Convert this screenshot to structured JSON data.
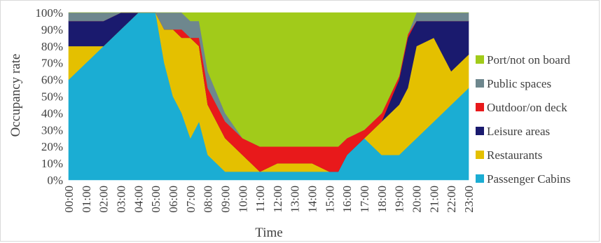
{
  "chart_data": {
    "type": "area",
    "stacked": true,
    "xlabel": "Time",
    "ylabel": "Occupancy rate",
    "ylim": [
      0,
      100
    ],
    "y_ticks": [
      "0%",
      "10%",
      "20%",
      "30%",
      "40%",
      "50%",
      "60%",
      "70%",
      "80%",
      "90%",
      "100%"
    ],
    "x": [
      "00:00",
      "01:00",
      "02:00",
      "03:00",
      "04:00",
      "05:00",
      "05:30",
      "06:00",
      "06:30",
      "07:00",
      "07:30",
      "08:00",
      "09:00",
      "10:00",
      "11:00",
      "12:00",
      "13:00",
      "14:00",
      "15:00",
      "15:30",
      "16:00",
      "17:00",
      "18:00",
      "19:00",
      "19:30",
      "20:00",
      "21:00",
      "22:00",
      "23:00"
    ],
    "x_tick_labels": [
      "00:00",
      "01:00",
      "02:00",
      "03:00",
      "04:00",
      "05:00",
      "06:00",
      "07:00",
      "08:00",
      "09:00",
      "10:00",
      "11:00",
      "12:00",
      "13:00",
      "14:00",
      "15:00",
      "16:00",
      "17:00",
      "18:00",
      "19:00",
      "20:00",
      "21:00",
      "22:00",
      "23:00"
    ],
    "legend_position": "right",
    "series": [
      {
        "name": "Passenger Cabins",
        "color": "#1BADD3",
        "values": [
          60,
          70,
          80,
          90,
          100,
          100,
          70,
          50,
          40,
          25,
          35,
          15,
          5,
          5,
          5,
          5,
          5,
          5,
          5,
          5,
          15,
          25,
          15,
          15,
          20,
          25,
          35,
          45,
          55
        ]
      },
      {
        "name": "Restaurants",
        "color": "#E4C000",
        "values": [
          20,
          10,
          0,
          0,
          0,
          0,
          20,
          40,
          45,
          60,
          45,
          30,
          20,
          10,
          0,
          5,
          5,
          5,
          0,
          0,
          0,
          0,
          20,
          30,
          35,
          55,
          50,
          20,
          20
        ]
      },
      {
        "name": "Leisure areas",
        "color": "#1A1A6E",
        "values": [
          15,
          15,
          15,
          10,
          0,
          0,
          0,
          0,
          0,
          0,
          0,
          0,
          0,
          0,
          0,
          0,
          0,
          0,
          0,
          0,
          0,
          0,
          0,
          15,
          30,
          15,
          10,
          30,
          20
        ]
      },
      {
        "name": "Outdoor/on deck",
        "color": "#E8191B",
        "values": [
          0,
          0,
          0,
          0,
          0,
          0,
          0,
          0,
          5,
          0,
          5,
          10,
          10,
          10,
          15,
          10,
          10,
          10,
          15,
          15,
          10,
          5,
          5,
          2,
          2,
          0,
          0,
          0,
          0
        ]
      },
      {
        "name": "Public spaces",
        "color": "#6E878E",
        "values": [
          5,
          5,
          5,
          0,
          0,
          0,
          10,
          10,
          10,
          10,
          10,
          10,
          5,
          0,
          0,
          0,
          0,
          0,
          0,
          0,
          0,
          0,
          0,
          0,
          0,
          5,
          5,
          5,
          5
        ]
      },
      {
        "name": "Port/not on board",
        "color": "#A1CB1A",
        "values": [
          0,
          0,
          0,
          0,
          0,
          0,
          0,
          0,
          0,
          5,
          5,
          35,
          60,
          75,
          80,
          80,
          80,
          80,
          80,
          80,
          75,
          70,
          60,
          38,
          13,
          0,
          0,
          0,
          0
        ]
      }
    ]
  }
}
